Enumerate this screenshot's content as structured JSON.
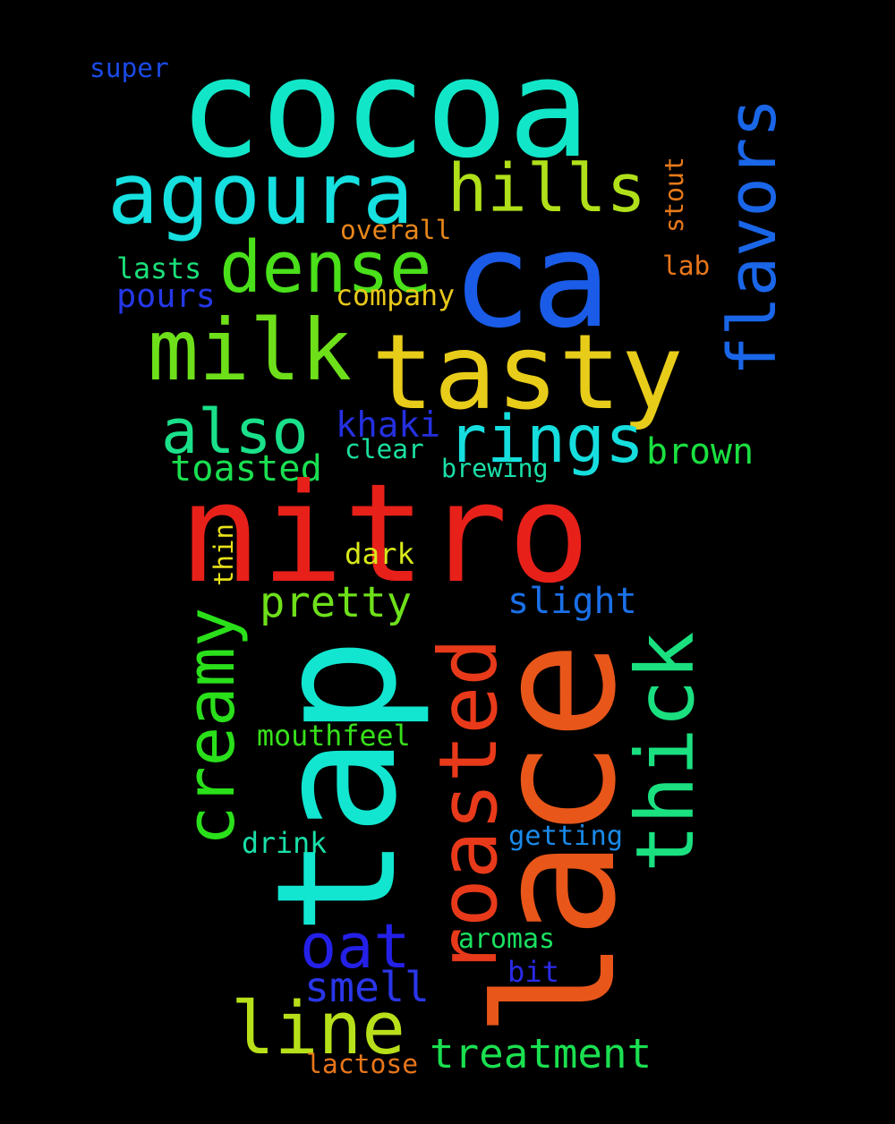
{
  "background": "#000000",
  "words": [
    {
      "text": "cocoa",
      "color": "#12e6c8"
    },
    {
      "text": "ca",
      "color": "#1a5ce8"
    },
    {
      "text": "agoura",
      "color": "#16e0e0"
    },
    {
      "text": "hills",
      "color": "#b0e01a"
    },
    {
      "text": "flavors",
      "color": "#1a66e8"
    },
    {
      "text": "super",
      "color": "#1a4ae8"
    },
    {
      "text": "stout",
      "color": "#e87a1a"
    },
    {
      "text": "dense",
      "color": "#4ae01a"
    },
    {
      "text": "overall",
      "color": "#e8861a"
    },
    {
      "text": "lab",
      "color": "#e8761a"
    },
    {
      "text": "lasts",
      "color": "#1ae07a"
    },
    {
      "text": "pours",
      "color": "#2438e8"
    },
    {
      "text": "company",
      "color": "#e8c81a"
    },
    {
      "text": "milk",
      "color": "#6ee01a"
    },
    {
      "text": "tasty",
      "color": "#e8cc1a"
    },
    {
      "text": "also",
      "color": "#1ae08a"
    },
    {
      "text": "khaki",
      "color": "#2430e0"
    },
    {
      "text": "rings",
      "color": "#16dede"
    },
    {
      "text": "brown",
      "color": "#1ae040"
    },
    {
      "text": "clear",
      "color": "#1ae0a0"
    },
    {
      "text": "toasted",
      "color": "#1ae050"
    },
    {
      "text": "brewing",
      "color": "#1ae0a8"
    },
    {
      "text": "nitro",
      "color": "#e8201a"
    },
    {
      "text": "thin",
      "color": "#e8e01a"
    },
    {
      "text": "dark",
      "color": "#d8e81a"
    },
    {
      "text": "creamy",
      "color": "#2ae01a"
    },
    {
      "text": "pretty",
      "color": "#6ee01a"
    },
    {
      "text": "slight",
      "color": "#1a70e8"
    },
    {
      "text": "tap",
      "color": "#12e6d0"
    },
    {
      "text": "roasted",
      "color": "#e83a1a"
    },
    {
      "text": "lace",
      "color": "#e8561a"
    },
    {
      "text": "thick",
      "color": "#1ae080"
    },
    {
      "text": "mouthfeel",
      "color": "#36e01a"
    },
    {
      "text": "drink",
      "color": "#1ae0a8"
    },
    {
      "text": "getting",
      "color": "#1a8ae8"
    },
    {
      "text": "oat",
      "color": "#2420e8"
    },
    {
      "text": "aromas",
      "color": "#1ae060"
    },
    {
      "text": "smell",
      "color": "#2a36e8"
    },
    {
      "text": "bit",
      "color": "#2a2ae8"
    },
    {
      "text": "line",
      "color": "#b8e01a"
    },
    {
      "text": "treatment",
      "color": "#1ae050"
    },
    {
      "text": "lactose",
      "color": "#e8761a"
    }
  ]
}
